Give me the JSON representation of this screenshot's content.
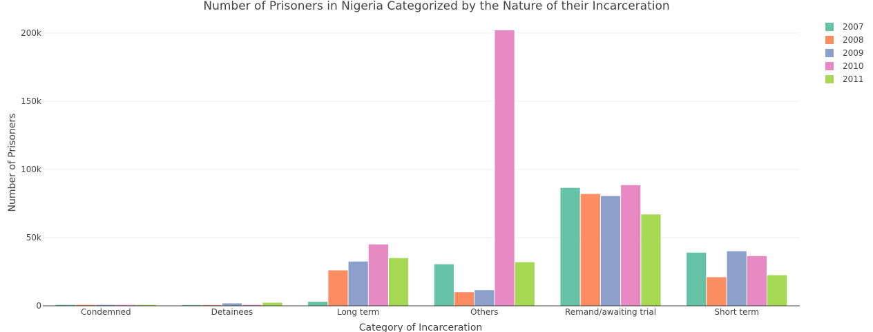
{
  "chart_data": {
    "type": "bar",
    "title": "Number of Prisoners in Nigeria Categorized by the Nature of their Incarceration",
    "xlabel": "Category of Incarceration",
    "ylabel": "Number of Prisoners",
    "ylim": [
      0,
      205000
    ],
    "yticks": [
      {
        "value": 0,
        "label": "0"
      },
      {
        "value": 50000,
        "label": "50k"
      },
      {
        "value": 100000,
        "label": "100k"
      },
      {
        "value": 150000,
        "label": "150k"
      },
      {
        "value": 200000,
        "label": "200k"
      }
    ],
    "categories": [
      "Condemned",
      "Detainees",
      "Long term",
      "Others",
      "Remand/awaiting trial",
      "Short term"
    ],
    "series": [
      {
        "name": "2007",
        "color": "#66c2a5",
        "values": [
          700,
          600,
          3000,
          30500,
          86500,
          39000
        ]
      },
      {
        "name": "2008",
        "color": "#fc8d62",
        "values": [
          700,
          600,
          26000,
          10000,
          82000,
          21000
        ]
      },
      {
        "name": "2009",
        "color": "#8da0cb",
        "values": [
          700,
          1800,
          32500,
          11500,
          80500,
          40000
        ]
      },
      {
        "name": "2010",
        "color": "#e78ac3",
        "values": [
          700,
          700,
          45000,
          202000,
          88500,
          36500
        ]
      },
      {
        "name": "2011",
        "color": "#a6d854",
        "values": [
          700,
          2300,
          35000,
          32000,
          67000,
          22500
        ]
      }
    ],
    "grid": true,
    "legend_position": "top-right"
  }
}
